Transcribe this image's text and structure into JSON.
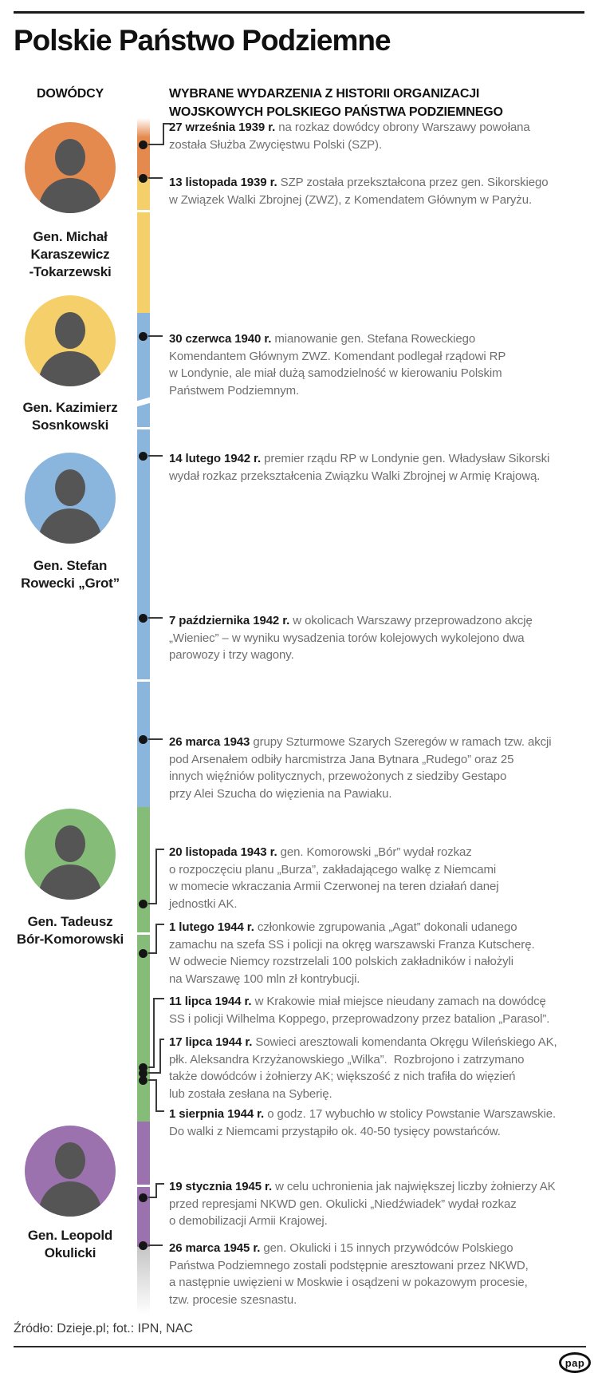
{
  "title": "Polskie Państwo Podziemne",
  "header": {
    "left": "DOWÓDCY",
    "right": "WYBRANE WYDARZENIA Z HISTORII ORGANIZACJI\nWOJSKOWYCH POLSKIEGO PAŃSTWA PODZIEMNEGO"
  },
  "colors": {
    "orange": "#E58A4F",
    "yellow": "#F5D06A",
    "blue": "#8AB5DD",
    "green": "#85BD78",
    "purple": "#9C72AE",
    "dot": "#151515",
    "connector": "#3b3b3b",
    "date_text": "#1a1a1a",
    "body_text": "#6f6f6f"
  },
  "commanders": [
    {
      "name": "Gen. Michał\nKaraszewicz\n-Tokarzewski",
      "color": "#E58A4F"
    },
    {
      "name": "Gen. Kazimierz\nSosnkowski",
      "color": "#F5D06A"
    },
    {
      "name": "Gen. Stefan\nRowecki „Grot”",
      "color": "#8AB5DD"
    },
    {
      "name": "Gen. Tadeusz\nBór-Komorowski",
      "color": "#85BD78"
    },
    {
      "name": "Gen. Leopold\nOkulicki",
      "color": "#9C72AE"
    }
  ],
  "events": [
    {
      "date": "27 września 1939 r.",
      "text": " na rozkaz dowódcy obrony Warszawy powołana\nzostała Służba Zwycięstwu Polski (SZP)."
    },
    {
      "date": "13 listopada 1939 r.",
      "text": " SZP została przekształcona przez gen. Sikorskiego\nw Związek Walki Zbrojnej (ZWZ), z Komendatem Głównym w Paryżu."
    },
    {
      "date": "30 czerwca 1940 r.",
      "text": " mianowanie gen. Stefana Roweckiego\nKomendantem Głównym ZWZ. Komendant podlegał rządowi RP\nw Londynie, ale miał dużą samodzielność w kierowaniu Polskim\nPaństwem Podziemnym."
    },
    {
      "date": "14 lutego 1942 r.",
      "text": " premier rządu RP w Londynie gen. Władysław Sikorski\nwydał rozkaz przekształcenia Związku Walki Zbrojnej w Armię Krajową."
    },
    {
      "date": "7 października 1942 r.",
      "text": " w okolicach Warszawy przeprowadzono akcję\n„Wieniec” – w wyniku wysadzenia torów kolejowych wykolejono dwa\nparowozy i trzy wagony."
    },
    {
      "date": "26 marca 1943",
      "text": " grupy Szturmowe Szarych Szeregów w ramach tzw. akcji\npod Arsenałem odbiły harcmistrza Jana Bytnara „Rudego” oraz 25\ninnych więźniów politycznych, przewożonych z siedziby Gestapo\nprzy Alei Szucha do więzienia na Pawiaku."
    },
    {
      "date": "20 listopada 1943 r.",
      "text": " gen. Komorowski „Bór” wydał rozkaz\no rozpoczęciu planu „Burza”, zakładającego walkę z Niemcami\nw momecie wkraczania Armii Czerwonej na teren działań danej\njednostki AK."
    },
    {
      "date": "1 lutego 1944 r.",
      "text": " członkowie zgrupowania „Agat” dokonali udanego\nzamachu na szefa SS i policji na okręg warszawski Franza Kutscherę.\nW odwecie Niemcy rozstrzelali 100 polskich zakładników i nałożyli\nna Warszawę 100 mln zł kontrybucji."
    },
    {
      "date": "11 lipca 1944 r.",
      "text": " w Krakowie miał miejsce nieudany zamach na dowódcę\nSS i policji Wilhelma Koppego, przeprowadzony przez batalion „Parasol”."
    },
    {
      "date": "17 lipca 1944 r.",
      "text": " Sowieci aresztowali komendanta Okręgu Wileńskiego AK,\npłk. Aleksandra Krzyżanowskiego „Wilka”.  Rozbrojono i zatrzymano\ntakże dowódców i żołnierzy AK; większość z nich trafiła do więzień\nlub została zesłana na Syberię."
    },
    {
      "date": "1 sierpnia 1944 r.",
      "text": " o godz. 17 wybuchło w stolicy Powstanie Warszawskie.\nDo walki z Niemcami przystąpiło ok. 40-50 tysięcy powstańców."
    },
    {
      "date": "19 stycznia 1945 r.",
      "text": " w celu uchronienia jak największej liczby żołnierzy AK\nprzed represjami NKWD gen. Okulicki „Niedźwiadek” wydał rozkaz\no demobilizacji Armii Krajowej."
    },
    {
      "date": "26 marca 1945 r.",
      "text": " gen. Okulicki i 15 innych przywódców Polskiego\nPaństwa Podziemnego zostali podstępnie aresztowani przez NKWD,\na następnie uwięzieni w Moskwie i osądzeni w pokazowym procesie,\ntzw. procesie szesnastu."
    }
  ],
  "footer": {
    "source": "Źródło: Dzieje.pl; fot.: IPN, NAC",
    "logo": "pap"
  }
}
